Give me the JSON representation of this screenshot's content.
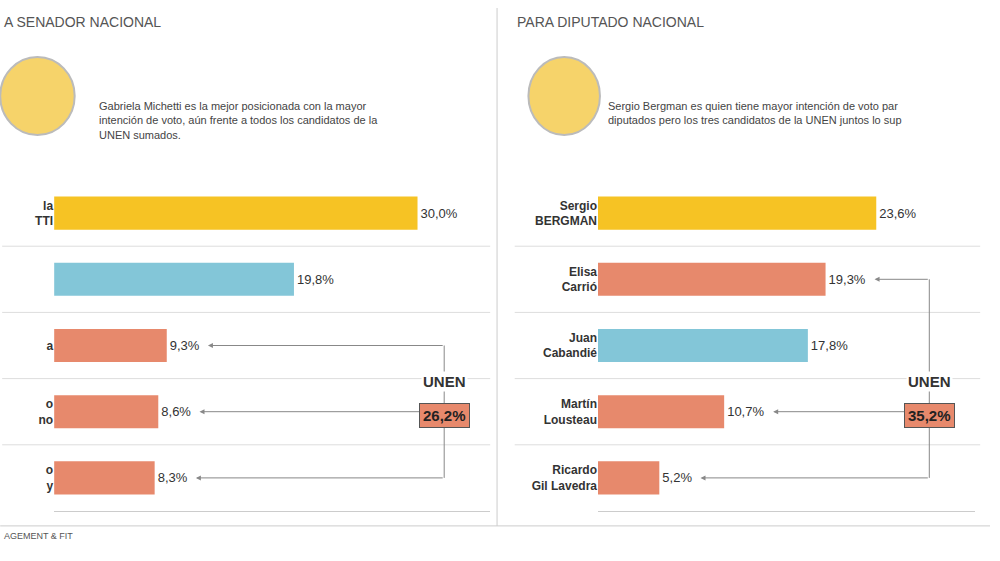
{
  "chart_data": [
    {
      "type": "bar",
      "orientation": "horizontal",
      "title": "A SENADOR NACIONAL",
      "subtitle": "Gabriela Michetti es la mejor posicionada con la mayor intención de voto, aún frente a todos los candidatos de la UNEN sumados.",
      "categories": [
        "la TTI",
        null,
        "a",
        "o no",
        "o y"
      ],
      "values": [
        30.0,
        19.8,
        9.3,
        8.6,
        8.3
      ],
      "value_labels": [
        "30,0%",
        "19,8%",
        "9,3%",
        "8,6%",
        "8,3%"
      ],
      "colors": [
        "#f6c324",
        "#83c6d8",
        "#e7896c",
        "#e7896c",
        "#e7896c"
      ],
      "xlim": [
        0,
        36
      ],
      "xticks": [],
      "grid": false,
      "tick_labels": "y",
      "data_labels": true,
      "annotations": [
        {
          "text": "UNEN",
          "value": 26.2,
          "value_label": "26,2%",
          "members": [
            2,
            3,
            4
          ]
        }
      ]
    },
    {
      "type": "bar",
      "orientation": "horizontal",
      "title": "PARA DIPUTADO NACIONAL",
      "subtitle": "Sergio Bergman es quien tiene mayor intención de voto par diputados pero los tres candidatos de la UNEN juntos lo sup",
      "categories": [
        "Sergio BERGMAN",
        "Elisa Carrió",
        "Juan Cabandié",
        "Martín Lousteau",
        "Ricardo Gil Lavedra"
      ],
      "values": [
        23.6,
        19.3,
        17.8,
        10.7,
        5.2
      ],
      "value_labels": [
        "23,6%",
        "19,3%",
        "17,8%",
        "10,7%",
        "5,2%"
      ],
      "colors": [
        "#f6c324",
        "#e7896c",
        "#83c6d8",
        "#e7896c",
        "#e7896c"
      ],
      "xlim": [
        0,
        32
      ],
      "xticks": [],
      "grid": false,
      "tick_labels": "y",
      "data_labels": true,
      "annotations": [
        {
          "text": "UNEN",
          "value": 35.2,
          "value_label": "35,2%",
          "members": [
            1,
            3,
            4
          ]
        }
      ]
    }
  ],
  "source": "AGEMENT & FIT"
}
